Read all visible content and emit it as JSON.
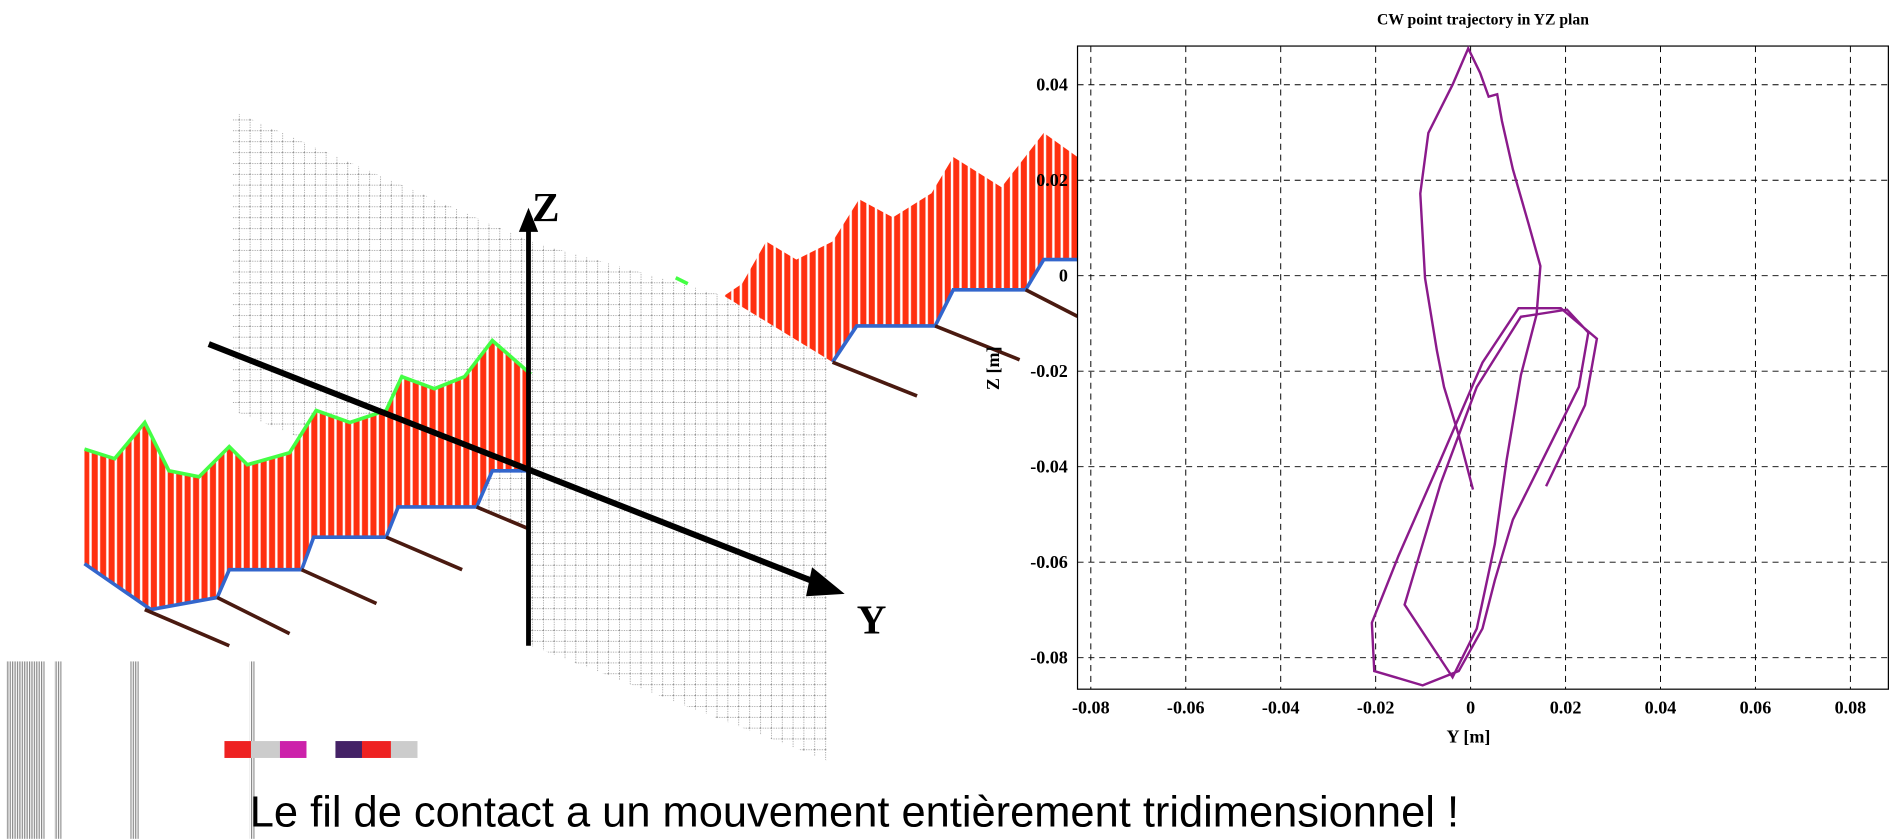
{
  "slide": {
    "illustration_labels": [
      "Z",
      "Y"
    ],
    "caption": "Le fil de contact a un mouvement entièrement tridimensionnel !"
  },
  "chart_data": {
    "type": "line",
    "title": "CW point trajectory in YZ plan",
    "x_label": "Y [m]",
    "y_label": "Z [m]",
    "grid": true,
    "xlim": [
      -0.0828,
      0.088
    ],
    "ylim": [
      -0.0866,
      0.0481
    ],
    "xticks": [
      -0.08,
      -0.06,
      -0.04,
      -0.02,
      0,
      0.02,
      0.04,
      0.06,
      0.08
    ],
    "yticks": [
      -0.08,
      -0.06,
      -0.04,
      -0.02,
      0,
      0.02,
      0.04
    ],
    "series": [
      {
        "color": "#8b1a8b",
        "x": [
          0.0005,
          -0.0025,
          -0.0056,
          -0.0071,
          -0.0096,
          -0.0106,
          -0.0089,
          -0.0038,
          -0.0005,
          0.002,
          0.0038,
          0.0056,
          0.0066,
          0.0089,
          0.0122,
          0.0147,
          0.0139,
          0.0106,
          0.0076,
          0.0051,
          0.0013,
          -0.0038,
          -0.0139,
          -0.0063,
          0.0013,
          0.0106,
          0.0203,
          0.0248,
          0.0228,
          0.0152,
          0.0089,
          0.0051,
          0.0025,
          -0.0025,
          -0.0101,
          -0.0203,
          -0.0208,
          -0.0152,
          -0.0063,
          0.0025,
          0.0101,
          0.019,
          0.0266,
          0.0241,
          0.0159
        ],
        "values": [
          -0.0448,
          -0.0334,
          -0.0233,
          -0.0157,
          -0.0005,
          0.0172,
          0.0299,
          0.04,
          0.0476,
          0.0425,
          0.0375,
          0.038,
          0.0324,
          0.0223,
          0.0109,
          0.002,
          -0.0081,
          -0.0208,
          -0.0385,
          -0.0562,
          -0.0739,
          -0.0841,
          -0.0689,
          -0.0435,
          -0.0233,
          -0.0086,
          -0.0071,
          -0.0119,
          -0.0233,
          -0.0385,
          -0.0511,
          -0.0638,
          -0.0739,
          -0.0828,
          -0.0858,
          -0.0828,
          -0.0727,
          -0.0587,
          -0.0385,
          -0.0182,
          -0.0068,
          -0.0068,
          -0.0132,
          -0.0271,
          -0.0441
        ]
      }
    ]
  }
}
